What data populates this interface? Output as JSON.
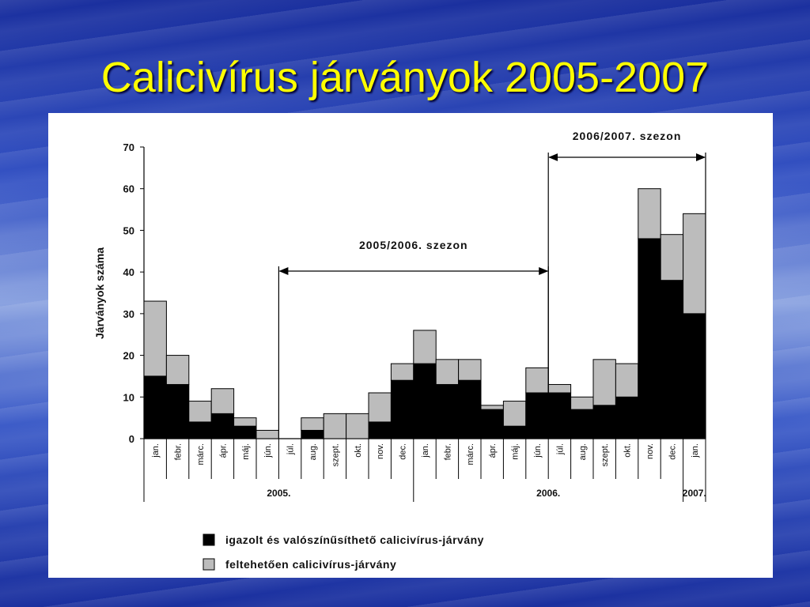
{
  "slide": {
    "title": "Calicivírus járványok 2005-2007"
  },
  "colors": {
    "confirmed": "#000000",
    "suspected": "#bcbcbc",
    "title": "#ffff00"
  },
  "chart_data": {
    "type": "bar",
    "stacked": true,
    "ylabel": "Járványok száma",
    "ylim": [
      0,
      70
    ],
    "yticks": [
      0,
      10,
      20,
      30,
      40,
      50,
      60,
      70
    ],
    "categories": [
      "jan.",
      "febr.",
      "márc.",
      "ápr.",
      "máj.",
      "jún.",
      "júl.",
      "aug.",
      "szept.",
      "okt.",
      "nov.",
      "dec.",
      "jan.",
      "febr.",
      "márc.",
      "ápr.",
      "máj.",
      "jún.",
      "júl.",
      "aug.",
      "szept.",
      "okt.",
      "nov.",
      "dec.",
      "jan."
    ],
    "years": [
      {
        "label": "2005.",
        "start": 0,
        "end": 11
      },
      {
        "label": "2006.",
        "start": 12,
        "end": 23
      },
      {
        "label": "2007.",
        "start": 24,
        "end": 24
      }
    ],
    "series": [
      {
        "name": "igazolt és valószínűsíthető calicivírus-járvány",
        "values": [
          15,
          13,
          4,
          6,
          3,
          0,
          0,
          2,
          0,
          0,
          4,
          14,
          18,
          13,
          14,
          7,
          3,
          11,
          11,
          7,
          8,
          10,
          48,
          38,
          30
        ]
      },
      {
        "name": "feltehetően calicivírus-járvány",
        "values": [
          18,
          7,
          5,
          6,
          2,
          2,
          0,
          3,
          6,
          6,
          7,
          4,
          8,
          6,
          5,
          1,
          6,
          6,
          2,
          3,
          11,
          8,
          12,
          11,
          24
        ]
      }
    ],
    "annotations": [
      {
        "label": "2005/2006. szezon",
        "from": 6,
        "to": 18
      },
      {
        "label": "2006/2007. szezon",
        "from": 18,
        "to": 25
      }
    ]
  }
}
